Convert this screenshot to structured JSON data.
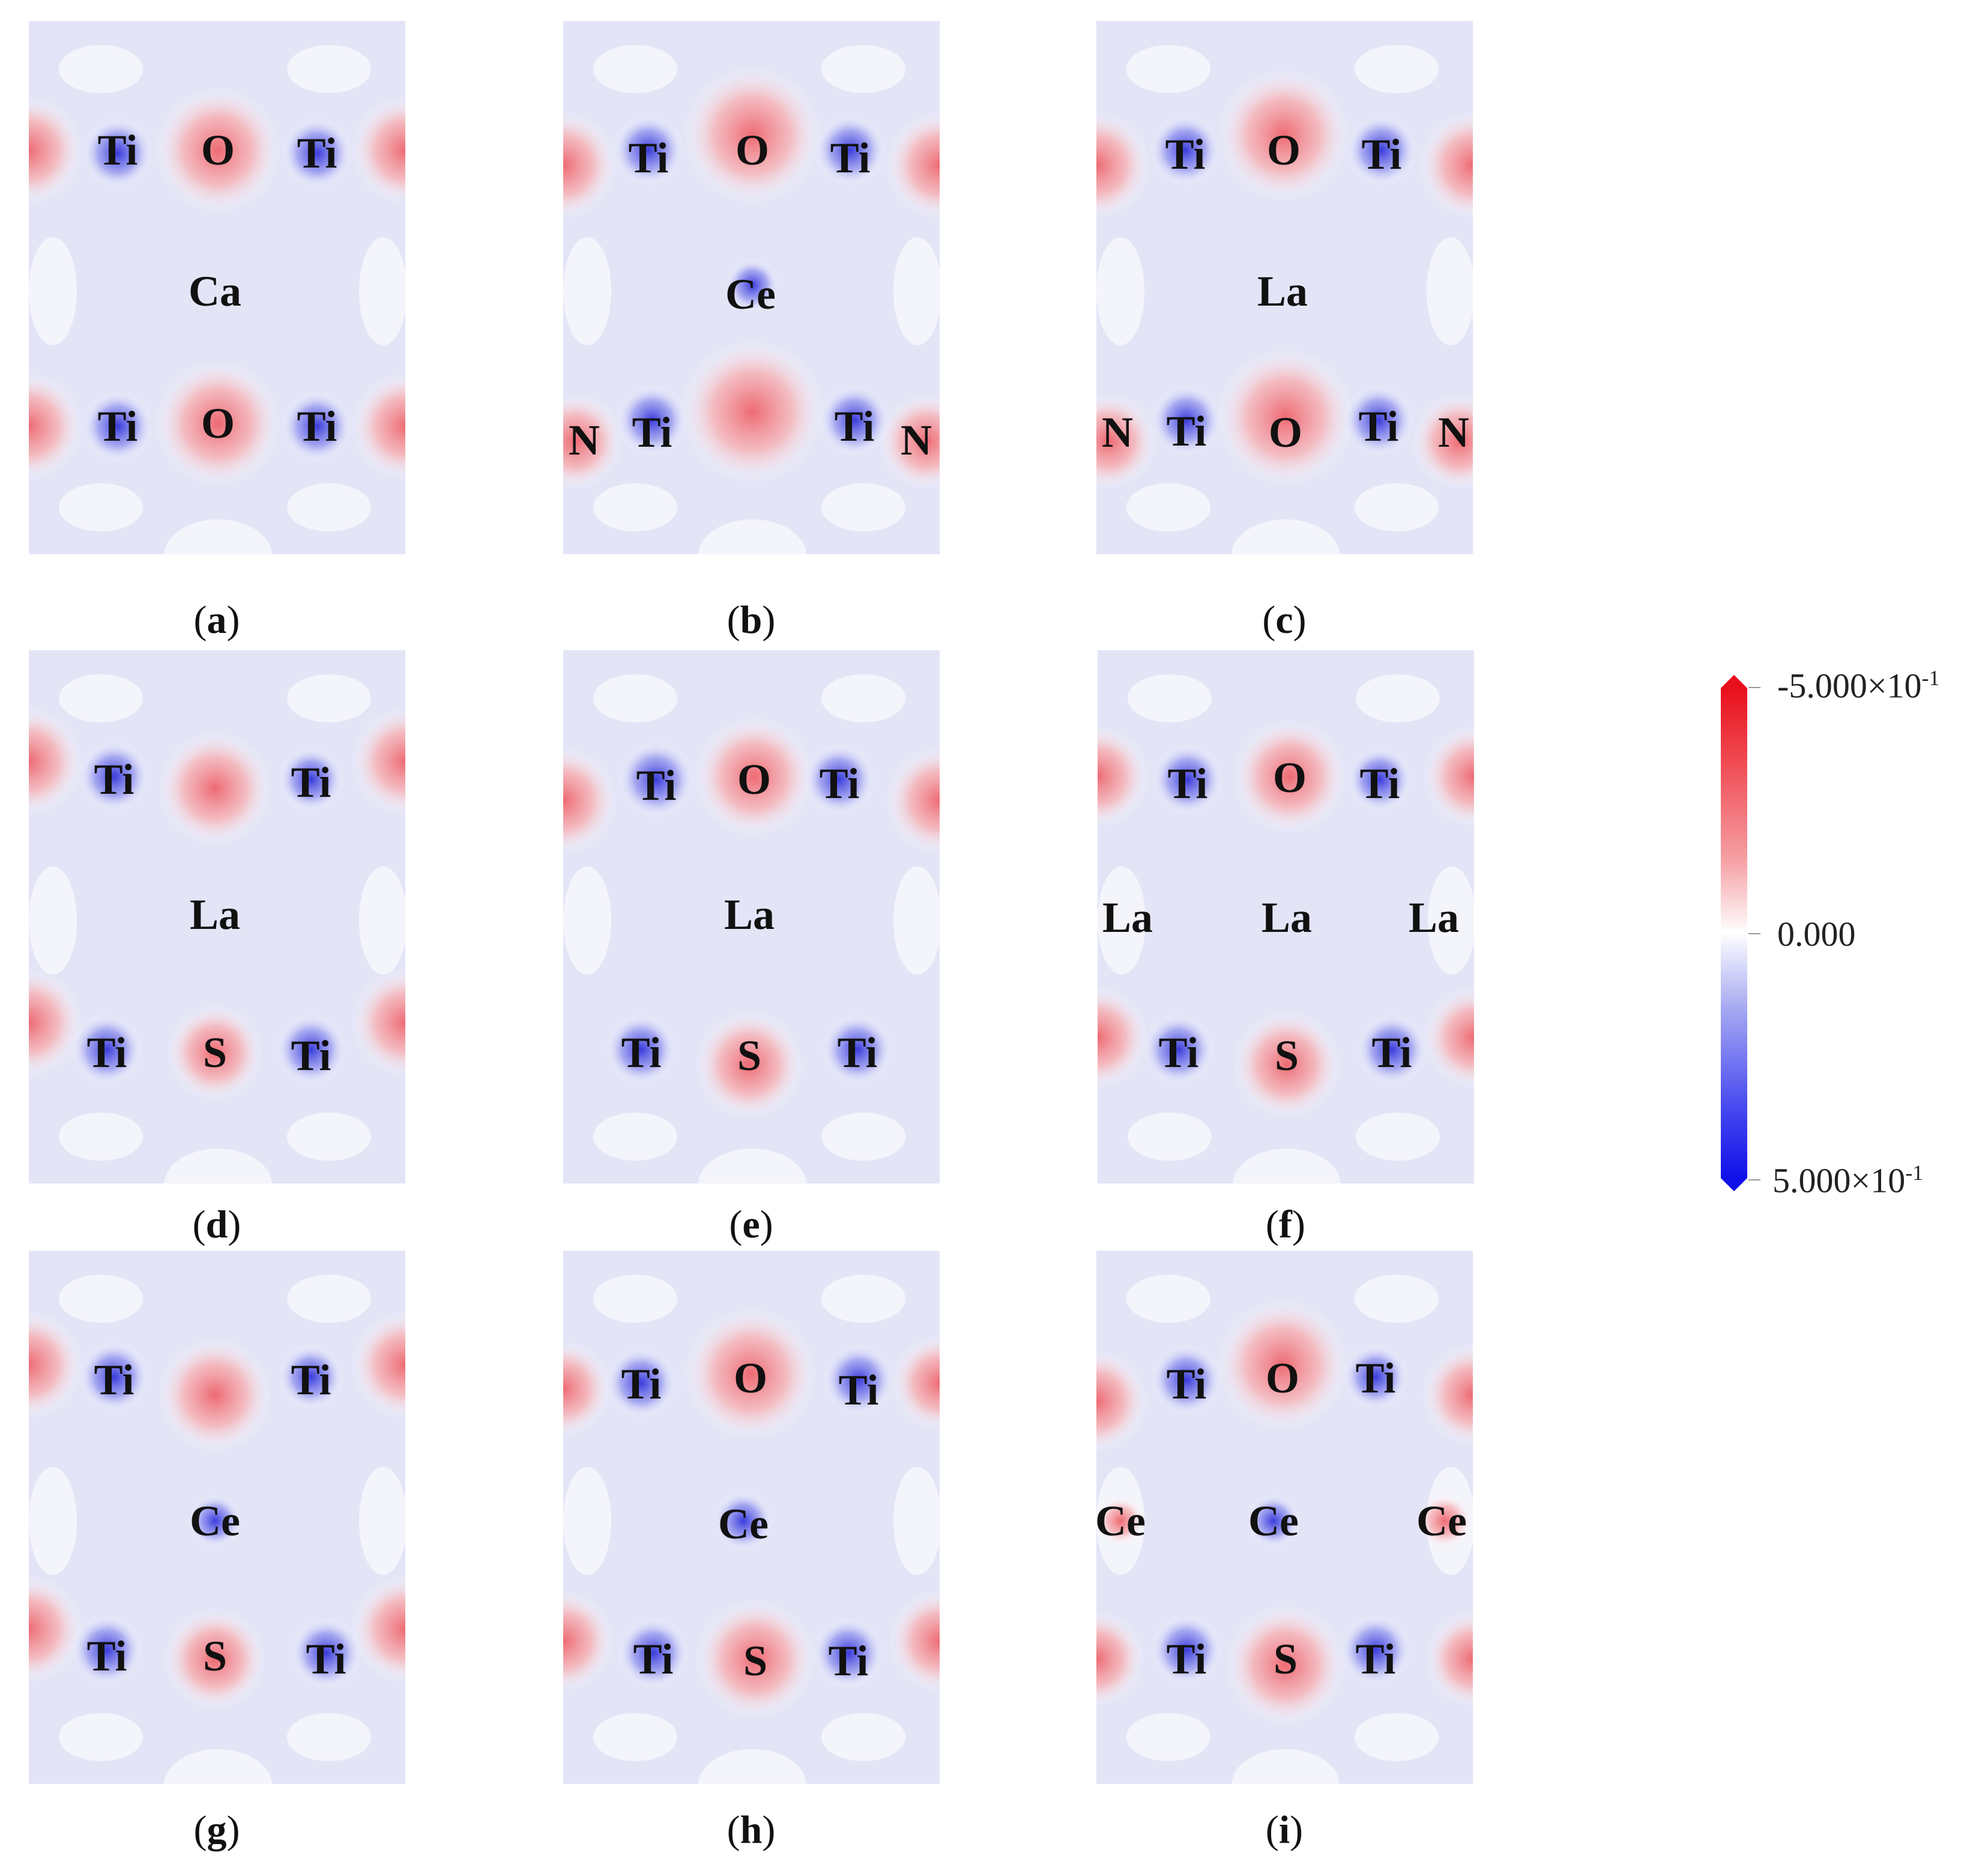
{
  "panels": [
    {
      "id": "a",
      "caption_open": "(",
      "caption_letter": "a",
      "caption_close": ")",
      "atoms": [
        {
          "t": "Ti"
        },
        {
          "t": "O"
        },
        {
          "t": "Ti"
        },
        {
          "t": "Ca"
        },
        {
          "t": "Ti"
        },
        {
          "t": "O"
        },
        {
          "t": "Ti"
        }
      ]
    },
    {
      "id": "b",
      "caption_open": "(",
      "caption_letter": "b",
      "caption_close": ")",
      "atoms": [
        {
          "t": "Ti"
        },
        {
          "t": "O"
        },
        {
          "t": "Ti"
        },
        {
          "t": "Ce"
        },
        {
          "t": "N"
        },
        {
          "t": "Ti"
        },
        {
          "t": "Ti"
        },
        {
          "t": "N"
        }
      ]
    },
    {
      "id": "c",
      "caption_open": "(",
      "caption_letter": "c",
      "caption_close": ")",
      "atoms": [
        {
          "t": "Ti"
        },
        {
          "t": "O"
        },
        {
          "t": "Ti"
        },
        {
          "t": "La"
        },
        {
          "t": "N"
        },
        {
          "t": "Ti"
        },
        {
          "t": "O"
        },
        {
          "t": "Ti"
        },
        {
          "t": "N"
        }
      ]
    },
    {
      "id": "d",
      "caption_open": "(",
      "caption_letter": "d",
      "caption_close": ")",
      "atoms": [
        {
          "t": "Ti"
        },
        {
          "t": "Ti"
        },
        {
          "t": "La"
        },
        {
          "t": "Ti"
        },
        {
          "t": "S"
        },
        {
          "t": "Ti"
        }
      ]
    },
    {
      "id": "e",
      "caption_open": "(",
      "caption_letter": "e",
      "caption_close": ")",
      "atoms": [
        {
          "t": "Ti"
        },
        {
          "t": "O"
        },
        {
          "t": "Ti"
        },
        {
          "t": "La"
        },
        {
          "t": "Ti"
        },
        {
          "t": "S"
        },
        {
          "t": "Ti"
        }
      ]
    },
    {
      "id": "f",
      "caption_open": "(",
      "caption_letter": "f",
      "caption_close": ")",
      "atoms": [
        {
          "t": "Ti"
        },
        {
          "t": "O"
        },
        {
          "t": "Ti"
        },
        {
          "t": "La"
        },
        {
          "t": "La"
        },
        {
          "t": "La"
        },
        {
          "t": "Ti"
        },
        {
          "t": "S"
        },
        {
          "t": "Ti"
        }
      ]
    },
    {
      "id": "g",
      "caption_open": "(",
      "caption_letter": "g",
      "caption_close": ")",
      "atoms": [
        {
          "t": "Ti"
        },
        {
          "t": "Ti"
        },
        {
          "t": "Ce"
        },
        {
          "t": "Ti"
        },
        {
          "t": "S"
        },
        {
          "t": "Ti"
        }
      ]
    },
    {
      "id": "h",
      "caption_open": "(",
      "caption_letter": "h",
      "caption_close": ")",
      "atoms": [
        {
          "t": "Ti"
        },
        {
          "t": "O"
        },
        {
          "t": "Ti"
        },
        {
          "t": "Ce"
        },
        {
          "t": "Ti"
        },
        {
          "t": "S"
        },
        {
          "t": "Ti"
        }
      ]
    },
    {
      "id": "i",
      "caption_open": "(",
      "caption_letter": "i",
      "caption_close": ")",
      "atoms": [
        {
          "t": "Ti"
        },
        {
          "t": "O"
        },
        {
          "t": "Ti"
        },
        {
          "t": "Ce"
        },
        {
          "t": "Ce"
        },
        {
          "t": "Ce"
        },
        {
          "t": "Ti"
        },
        {
          "t": "S"
        },
        {
          "t": "Ti"
        }
      ]
    }
  ],
  "colorbar": {
    "max_label_mantissa": "-5.000×10",
    "max_label_exp": "-1",
    "mid_label": "0.000",
    "min_label_mantissa": "5.000×10",
    "min_label_exp": "-1",
    "colors": {
      "negative": "#e8101c",
      "zero": "#ffffff",
      "positive": "#1010e8"
    }
  }
}
